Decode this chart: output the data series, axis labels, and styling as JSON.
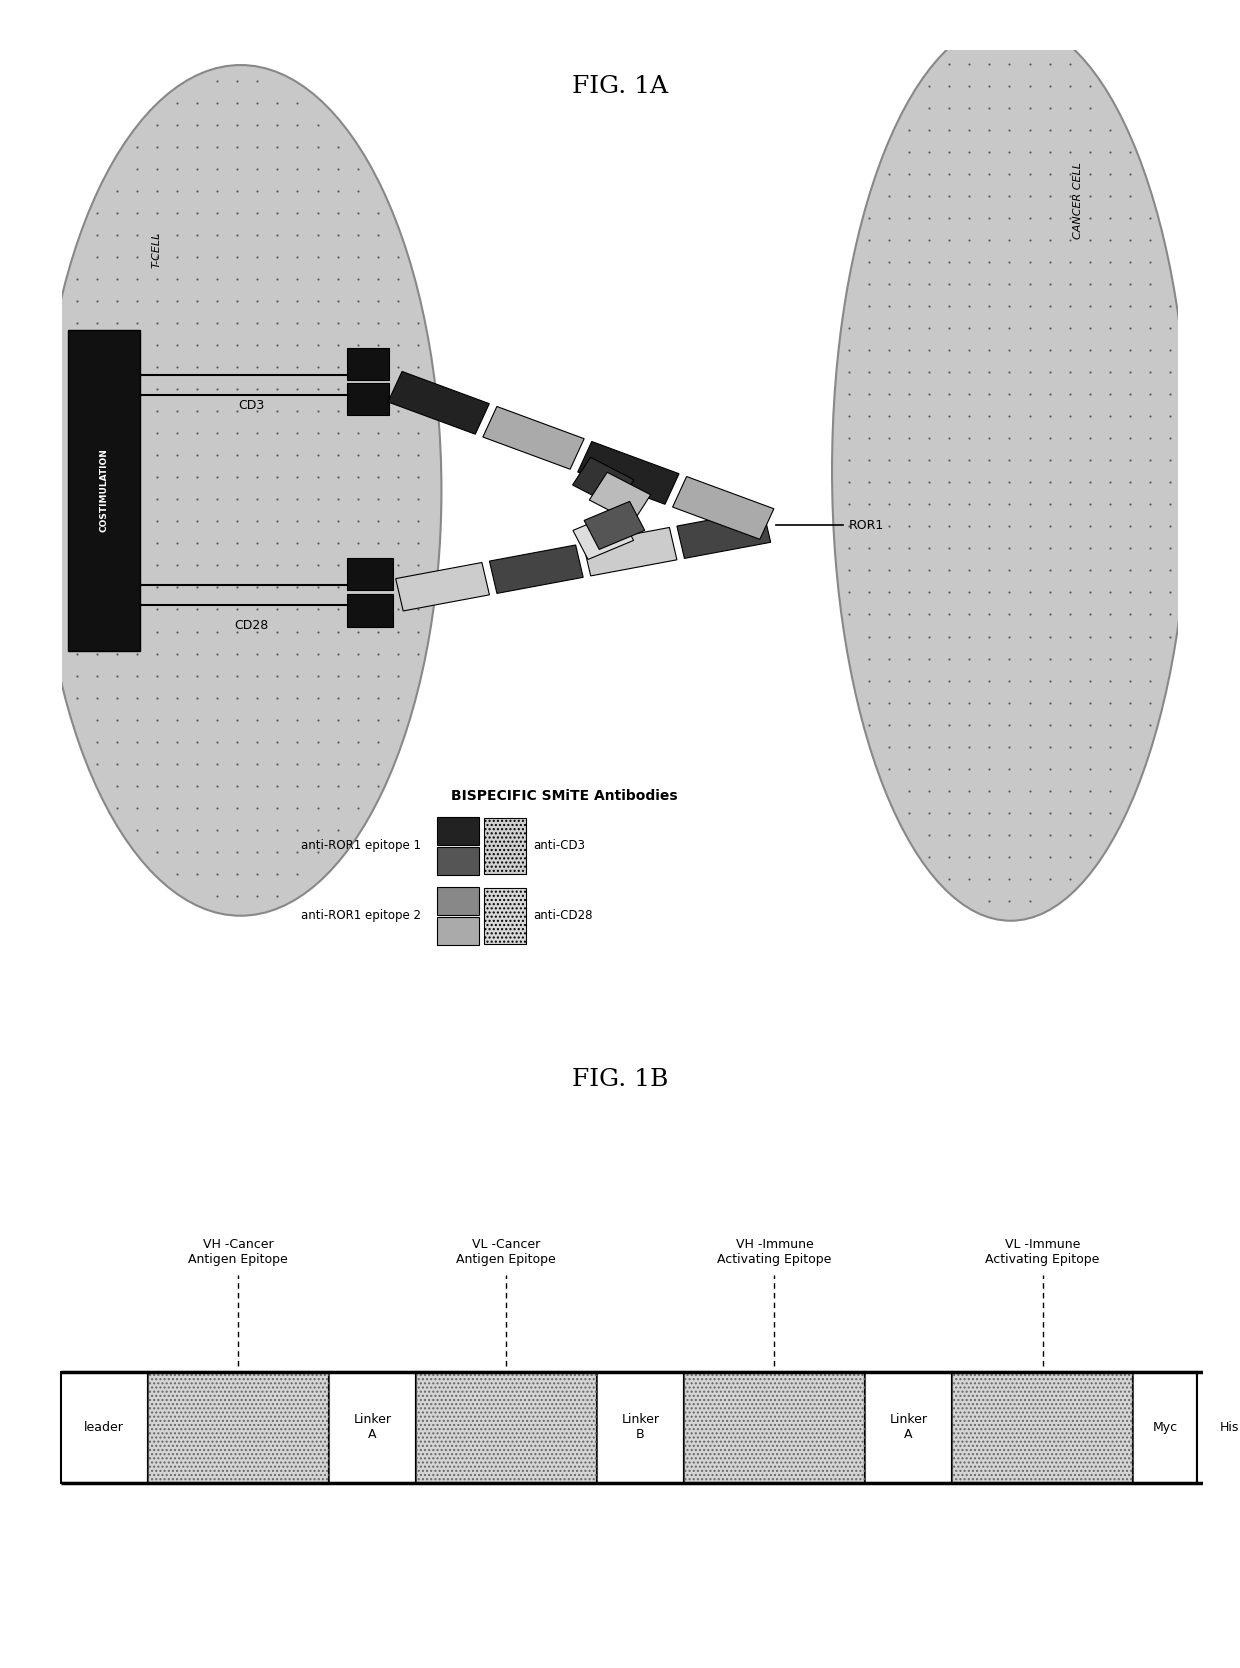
{
  "fig_title_1a": "FIG. 1A",
  "fig_title_1b": "FIG. 1B",
  "bispecific_label": "BISPECIFIC SMiTE Antibodies",
  "anti_ror1_ep1": "anti-ROR1 epitope 1",
  "anti_ror1_ep2": "anti-ROR1 epitope 2",
  "anti_cd3": "anti-CD3",
  "anti_cd28": "anti-CD28",
  "t_cell_label": "T-CELL",
  "cancer_cell_label": "CANCER CELL",
  "costimulation_label": "COSTIMULATION",
  "cd3_label": "CD3",
  "cd28_label": "CD28",
  "ror1_label": "ROR1",
  "bg_color": "#ffffff",
  "cell_fill": "#c8c8c8",
  "cell_edge": "#999999",
  "dark_box": "#222222",
  "fig1b_segment_labels": [
    "VH -Cancer\nAntigen Epitope",
    "VL -Cancer\nAntigen Epitope",
    "VH -Immune\nActivating Epitope",
    "VL -Immune\nActivating Epitope"
  ]
}
